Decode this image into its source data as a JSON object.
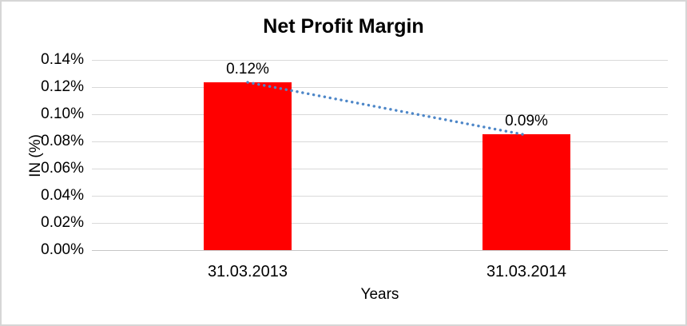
{
  "chart_data": {
    "type": "bar",
    "title": "Net Profit Margin",
    "categories": [
      "31.03.2013",
      "31.03.2014"
    ],
    "values": [
      0.1235,
      0.085
    ],
    "data_labels": [
      "0.12%",
      "0.09%"
    ],
    "xlabel": "Years",
    "ylabel": "IN (%)",
    "ylim": [
      0,
      0.14
    ],
    "ytick_interval": 0.02,
    "ytick_labels": [
      "0.00%",
      "0.02%",
      "0.04%",
      "0.06%",
      "0.08%",
      "0.10%",
      "0.12%",
      "0.14%"
    ],
    "grid": true,
    "legend": false,
    "bar_color": "#ff0000",
    "trendline": {
      "type": "linear",
      "style": "dotted",
      "color": "#4e87c8",
      "from_category": "31.03.2013",
      "to_category": "31.03.2014"
    }
  },
  "colors": {
    "bar": "#ff0000",
    "trendline": "#4e87c8",
    "gridline": "#d9d9d9",
    "axis_line": "#c6c6c6",
    "text": "#000000",
    "frame_border": "#d6d6d6",
    "background": "#ffffff"
  }
}
